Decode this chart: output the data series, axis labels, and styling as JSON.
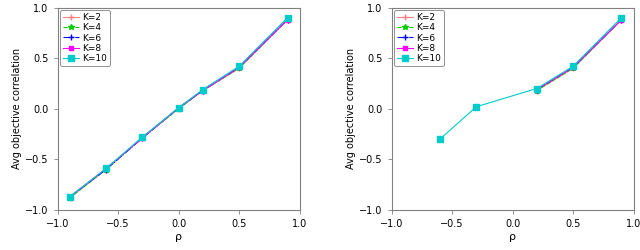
{
  "left": {
    "rho_values": [
      -0.9,
      -0.6,
      -0.3,
      0.0,
      0.2,
      0.5,
      0.9
    ],
    "series": {
      "K=2": {
        "color": "#ff8080",
        "linestyle": "-",
        "marker": "+",
        "markersize": 4,
        "lw": 0.8,
        "y": [
          -0.88,
          -0.6,
          -0.28,
          0.0,
          0.18,
          0.4,
          0.88
        ]
      },
      "K=4": {
        "color": "#00cc00",
        "linestyle": "--",
        "marker": "*",
        "markersize": 4,
        "lw": 0.8,
        "y": [
          -0.88,
          -0.6,
          -0.29,
          0.0,
          0.18,
          0.4,
          0.88
        ]
      },
      "K=6": {
        "color": "#0000ff",
        "linestyle": "-.",
        "marker": "+",
        "markersize": 4,
        "lw": 0.8,
        "y": [
          -0.87,
          -0.6,
          -0.29,
          0.01,
          0.18,
          0.41,
          0.88
        ]
      },
      "K=8": {
        "color": "#ff00ff",
        "linestyle": "-",
        "marker": "s",
        "markersize": 3,
        "lw": 0.8,
        "y": [
          -0.87,
          -0.59,
          -0.29,
          0.01,
          0.18,
          0.41,
          0.88
        ]
      },
      "K=10": {
        "color": "#00cccc",
        "linestyle": "-",
        "marker": "s",
        "markersize": 4,
        "lw": 0.8,
        "y": [
          -0.87,
          -0.59,
          -0.28,
          0.01,
          0.19,
          0.42,
          0.9
        ]
      }
    },
    "xlabel": "ρ",
    "ylabel": "Avg objective correlation",
    "xlim": [
      -1,
      1
    ],
    "ylim": [
      -1,
      1
    ],
    "xticks": [
      -1,
      -0.5,
      0,
      0.5,
      1
    ],
    "yticks": [
      -1,
      -0.5,
      0,
      0.5,
      1
    ]
  },
  "right": {
    "rho_values": [
      -0.6,
      -0.3,
      0.0,
      0.2,
      0.5,
      0.9
    ],
    "series": {
      "K=2": {
        "color": "#ff8080",
        "linestyle": "-",
        "marker": "+",
        "markersize": 4,
        "lw": 0.8,
        "y": [
          null,
          null,
          null,
          0.18,
          0.4,
          0.88
        ]
      },
      "K=4": {
        "color": "#00cc00",
        "linestyle": "--",
        "marker": "*",
        "markersize": 4,
        "lw": 0.8,
        "y": [
          null,
          null,
          null,
          0.18,
          0.4,
          0.88
        ]
      },
      "K=6": {
        "color": "#0000ff",
        "linestyle": "-.",
        "marker": "+",
        "markersize": 4,
        "lw": 0.8,
        "y": [
          null,
          null,
          null,
          0.19,
          0.41,
          0.88
        ]
      },
      "K=8": {
        "color": "#ff00ff",
        "linestyle": "-",
        "marker": "s",
        "markersize": 3,
        "lw": 0.8,
        "y": [
          null,
          null,
          null,
          0.19,
          0.41,
          0.88
        ]
      },
      "K=10": {
        "color": "#00cccc",
        "linestyle": "-",
        "marker": "s",
        "markersize": 4,
        "lw": 0.8,
        "y": [
          -0.3,
          0.02,
          null,
          0.2,
          0.42,
          0.9
        ]
      }
    },
    "xlabel": "ρ",
    "ylabel": "Avg objective correlation",
    "xlim": [
      -1,
      1
    ],
    "ylim": [
      -1,
      1
    ],
    "xticks": [
      -1,
      -0.5,
      0,
      0.5,
      1
    ],
    "yticks": [
      -1,
      -0.5,
      0,
      0.5,
      1
    ]
  },
  "legend_order": [
    "K=2",
    "K=4",
    "K=6",
    "K=8",
    "K=10"
  ],
  "plot_bg": "#ffffff",
  "fig_bg": "#ffffff",
  "spine_color": "#808080",
  "tick_color": "#000000"
}
